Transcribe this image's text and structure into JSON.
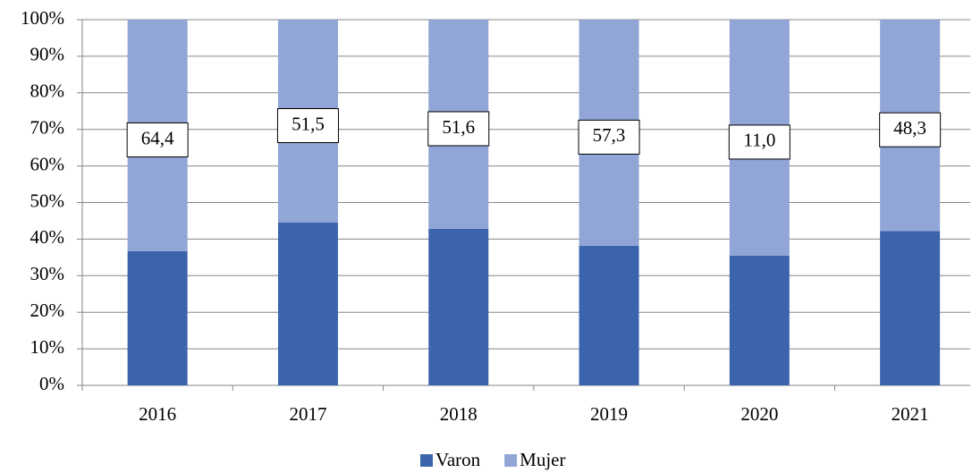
{
  "chart_data": {
    "type": "stacked_bar",
    "categories": [
      "2016",
      "2017",
      "2018",
      "2019",
      "2020",
      "2021"
    ],
    "series": [
      {
        "name": "Varon",
        "color": "#3c64ad",
        "values": [
          36.7,
          44.5,
          42.8,
          38.2,
          35.5,
          42.2
        ]
      },
      {
        "name": "Mujer",
        "color": "#91a5d6",
        "values": [
          63.3,
          55.5,
          57.2,
          61.8,
          64.5,
          57.8
        ]
      }
    ],
    "annotations": [
      "64,4",
      "51,5",
      "51,6",
      "57,3",
      "11,0",
      "48,3"
    ],
    "ylim": [
      0,
      100
    ],
    "yticks": [
      {
        "value": 0,
        "label": "0%"
      },
      {
        "value": 10,
        "label": "10%"
      },
      {
        "value": 20,
        "label": "20%"
      },
      {
        "value": 30,
        "label": "30%"
      },
      {
        "value": 40,
        "label": "40%"
      },
      {
        "value": 50,
        "label": "50%"
      },
      {
        "value": 60,
        "label": "60%"
      },
      {
        "value": 70,
        "label": "70%"
      },
      {
        "value": 80,
        "label": "80%"
      },
      {
        "value": 90,
        "label": "90%"
      },
      {
        "value": 100,
        "label": "100%"
      }
    ],
    "grid": true,
    "legend": "bottom"
  }
}
